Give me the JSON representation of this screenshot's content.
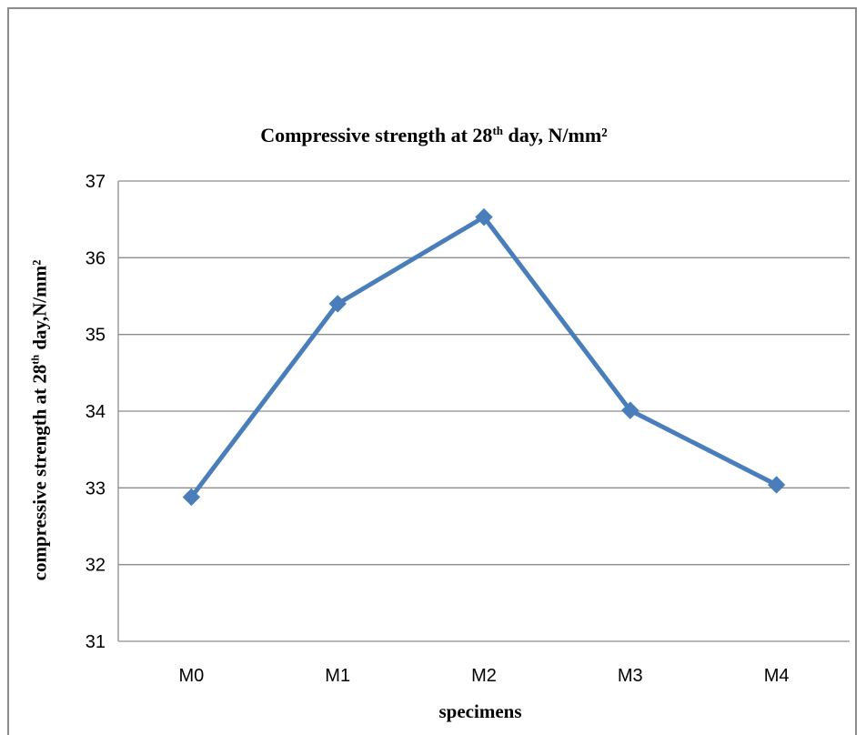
{
  "chart_data": {
    "type": "line",
    "title": {
      "prefix": "Compressive strength at 28",
      "sup": "th",
      "suffix": " day, N/mm²"
    },
    "xlabel": "specimens",
    "ylabel": {
      "prefix": "compressive strength at 28",
      "sup": "th",
      "suffix": " day,N/mm²"
    },
    "categories": [
      "M0",
      "M1",
      "M2",
      "M3",
      "M4"
    ],
    "series": [
      {
        "values": [
          32.88,
          35.4,
          36.53,
          34.01,
          33.04
        ],
        "color": "#4a7ebb",
        "marker": "diamond"
      }
    ],
    "ylim": [
      31,
      37
    ],
    "yticks": [
      "31",
      "32",
      "33",
      "34",
      "35",
      "36",
      "37"
    ],
    "grid": "horizontal",
    "legend": "none"
  }
}
